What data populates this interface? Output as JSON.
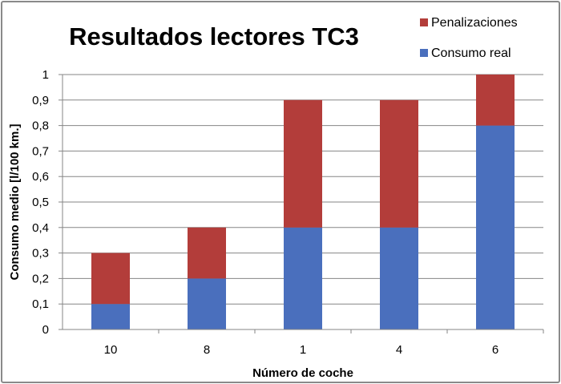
{
  "chart_data": {
    "type": "bar",
    "stacked": true,
    "title": "Resultados lectores TC3",
    "xlabel": "Número de coche",
    "ylabel": "Consumo medio [l/100 km.]",
    "categories": [
      "10",
      "8",
      "1",
      "4",
      "6"
    ],
    "series": [
      {
        "name": "Consumo real",
        "color": "#4a6fbd",
        "values": [
          0.1,
          0.2,
          0.4,
          0.4,
          0.8
        ]
      },
      {
        "name": "Penalizaciones",
        "color": "#b33d3a",
        "values": [
          0.2,
          0.2,
          0.5,
          0.5,
          0.2
        ]
      }
    ],
    "ylim": [
      0,
      1
    ],
    "yticks": [
      "0",
      "0,1",
      "0,2",
      "0,3",
      "0,4",
      "0,5",
      "0,6",
      "0,7",
      "0,8",
      "0,9",
      "1"
    ],
    "grid": true,
    "legend": "top-right",
    "legend_order": [
      "Penalizaciones",
      "Consumo real"
    ]
  }
}
